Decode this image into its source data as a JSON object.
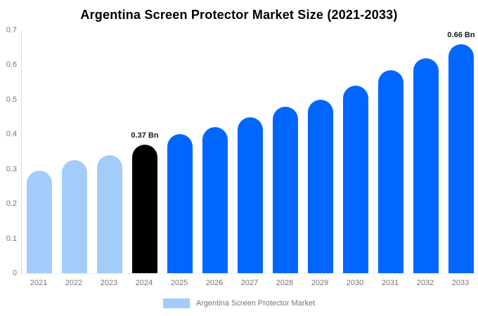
{
  "title": "Argentina Screen Protector Market Size (2021-2033)",
  "legend": {
    "label": "Argentina Screen Protector Market",
    "swatch_color": "#a3ccfa"
  },
  "colors": {
    "historical_bar": "#a3ccfa",
    "highlight_bar": "#000000",
    "forecast_bar": "#0066ff",
    "axis_line": "#d6d6d6",
    "baseline": "#ececec",
    "tick_label": "#757575",
    "annotation_text": "#1a1a1a",
    "title_text": "#000000"
  },
  "chart_data": {
    "type": "bar",
    "title": "Argentina Screen Protector Market Size (2021-2033)",
    "categories": [
      "2021",
      "2022",
      "2023",
      "2024",
      "2025",
      "2026",
      "2027",
      "2028",
      "2029",
      "2030",
      "2031",
      "2032",
      "2033"
    ],
    "values": [
      0.295,
      0.325,
      0.34,
      0.37,
      0.4,
      0.42,
      0.45,
      0.48,
      0.5,
      0.54,
      0.585,
      0.62,
      0.66
    ],
    "unit": "Bn",
    "xlabel": "",
    "ylabel": "",
    "ylim": [
      0,
      0.7
    ],
    "ytick_labels": [
      "0.7",
      "0.6",
      "0.5",
      "0.4",
      "0.3",
      "0.2",
      "0.1",
      "0"
    ],
    "grid": false,
    "legend_position": "bottom",
    "legend_entries": [
      "Argentina Screen Protector Market"
    ],
    "bar_colors": [
      "#a3ccfa",
      "#a3ccfa",
      "#a3ccfa",
      "#000000",
      "#0066ff",
      "#0066ff",
      "#0066ff",
      "#0066ff",
      "#0066ff",
      "#0066ff",
      "#0066ff",
      "#0066ff",
      "#0066ff"
    ],
    "annotations": [
      {
        "index": 3,
        "category": "2024",
        "text": "0.37 Bn"
      },
      {
        "index": 12,
        "category": "2033",
        "text": "0.66 Bn"
      }
    ]
  }
}
